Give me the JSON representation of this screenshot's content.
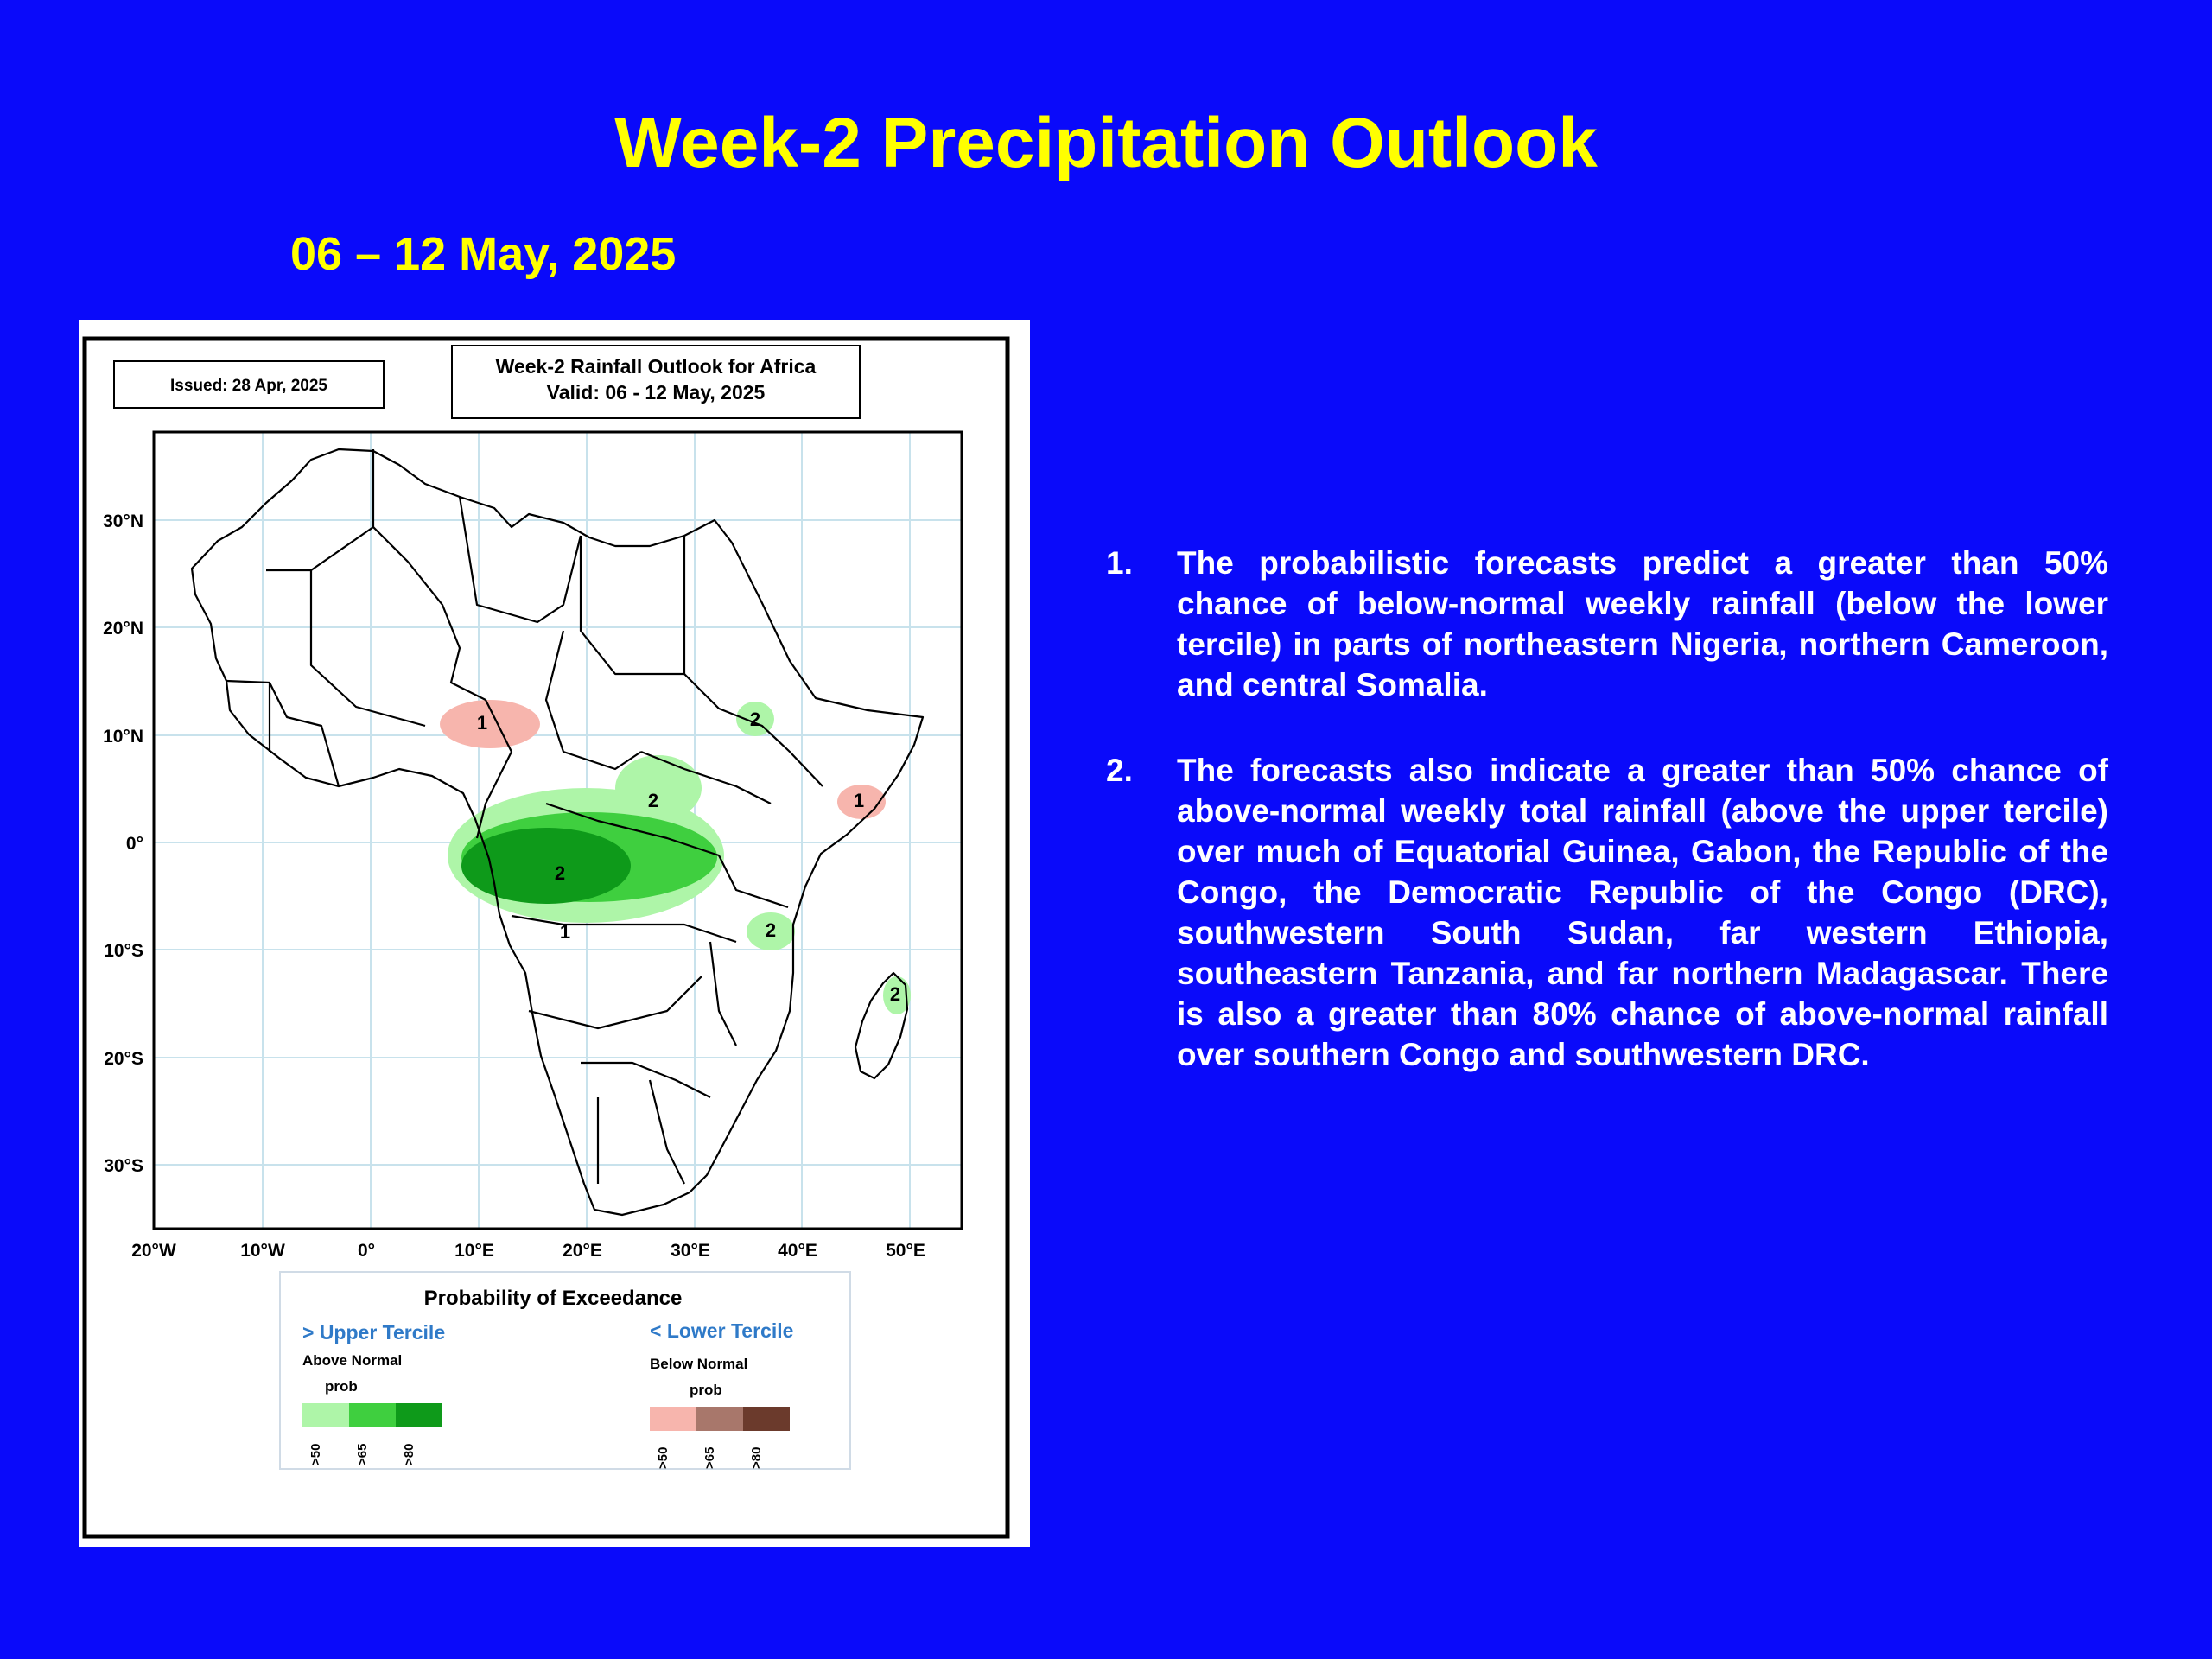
{
  "slide": {
    "title": "Week-2 Precipitation Outlook",
    "subtitle": "06 – 12 May, 2025"
  },
  "map": {
    "issued_label": "Issued: 28 Apr, 2025",
    "header_line1": "Week-2 Rainfall Outlook for Africa",
    "header_line2": "Valid: 06 - 12  May, 2025",
    "lat_labels": [
      "30°N",
      "20°N",
      "10°N",
      "0°",
      "10°S",
      "20°S",
      "30°S"
    ],
    "lon_labels": [
      "20°W",
      "10°W",
      "0°",
      "10°E",
      "20°E",
      "30°E",
      "40°E",
      "50°E"
    ],
    "legend": {
      "title": "Probability of Exceedance",
      "upper_heading": "> Upper Tercile",
      "upper_sub": "Above Normal",
      "upper_prob": "prob",
      "upper_colors": [
        "#aef5a8",
        "#3fcf3f",
        "#0e9a1a"
      ],
      "upper_ticks": [
        ">50",
        ">65",
        ">80"
      ],
      "lower_heading": "< Lower Tercile",
      "lower_sub": "Below Normal",
      "lower_prob": "prob",
      "lower_colors": [
        "#f7b5ad",
        "#a8776b",
        "#6b3a2c"
      ],
      "lower_ticks": [
        ">50",
        ">65",
        ">80"
      ]
    },
    "region_labels": [
      "1",
      "1",
      "1",
      "2",
      "2",
      "2",
      "2",
      "2"
    ]
  },
  "notes": [
    {
      "num": "1.",
      "text": "The probabilistic forecasts predict a greater than 50% chance of below-normal weekly rainfall (below the lower tercile) in parts of northeastern Nigeria, northern Cameroon, and central Somalia."
    },
    {
      "num": "2.",
      "text": "The forecasts also indicate a greater than 50% chance of above-normal weekly total rainfall (above the upper tercile) over much of Equatorial Guinea, Gabon, the Republic of the Congo, the Democratic Republic of the Congo (DRC), southwestern South Sudan, far western Ethiopia, southeastern Tanzania, and far northern Madagascar. There is also a greater than 80% chance of above-normal rainfall over southern Congo and southwestern DRC."
    }
  ]
}
